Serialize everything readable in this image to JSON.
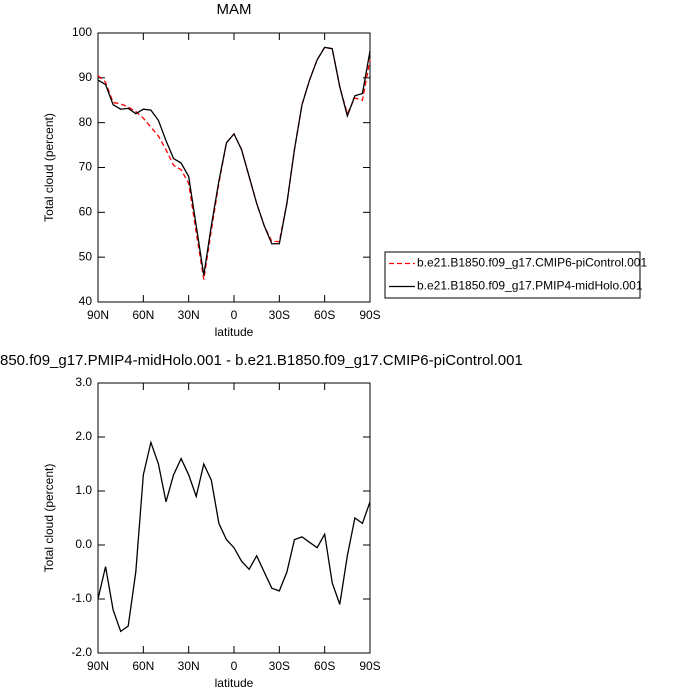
{
  "chart_data": [
    {
      "type": "line",
      "title": "MAM",
      "x_label": "latitude",
      "y_label": "Total cloud (percent)",
      "x": [
        90,
        85,
        80,
        75,
        70,
        65,
        60,
        55,
        50,
        45,
        40,
        35,
        30,
        25,
        20,
        15,
        10,
        5,
        0,
        -5,
        -10,
        -15,
        -20,
        -25,
        -30,
        -35,
        -40,
        -45,
        -50,
        -55,
        -60,
        -65,
        -70,
        -75,
        -80,
        -85,
        -90
      ],
      "series": [
        {
          "name": "b.e21.B1850.f09_g17.CMIP6-piControl.001",
          "color": "#ff0000",
          "dash": true,
          "values": [
            90.5,
            89,
            84.5,
            84.2,
            83.5,
            82.5,
            81,
            79,
            77,
            74,
            70.5,
            69.5,
            66.5,
            55.5,
            45,
            56,
            66.5,
            75.5,
            77.5,
            74,
            68,
            62,
            57,
            53.5,
            53.5,
            62,
            74,
            84,
            89.5,
            94,
            96.8,
            96.5,
            88,
            82,
            85.5,
            85,
            94
          ]
        },
        {
          "name": "b.e21.B1850.f09_g17.PMIP4-midHolo.001",
          "color": "#000000",
          "dash": false,
          "values": [
            89.5,
            88.5,
            84,
            83,
            83.2,
            82,
            83,
            82.8,
            80.5,
            76,
            72,
            71,
            68,
            57,
            46,
            57,
            67,
            75.5,
            77.5,
            74,
            68,
            62,
            57,
            53,
            53,
            62,
            74,
            84,
            89.5,
            94,
            96.8,
            96.5,
            88,
            81.5,
            86,
            86.5,
            96
          ]
        }
      ],
      "xlim": [
        90,
        -90
      ],
      "xticks": [
        {
          "value": 90,
          "label": "90N"
        },
        {
          "value": 60,
          "label": "60N"
        },
        {
          "value": 30,
          "label": "30N"
        },
        0,
        {
          "value": -30,
          "label": "30S"
        },
        {
          "value": -60,
          "label": "60S"
        },
        {
          "value": -90,
          "label": "90S"
        }
      ],
      "ylim": [
        40,
        100
      ],
      "yticks": [
        40,
        50,
        60,
        70,
        80,
        90,
        100
      ],
      "legend": "right"
    },
    {
      "type": "line",
      "title": "850.f09_g17.PMIP4-midHolo.001 - b.e21.B1850.f09_g17.CMIP6-piControl.001",
      "x_label": "latitude",
      "y_label": "Total cloud (percent)",
      "x": [
        90,
        85,
        80,
        75,
        70,
        65,
        60,
        55,
        50,
        45,
        40,
        35,
        30,
        25,
        20,
        15,
        10,
        5,
        0,
        -5,
        -10,
        -15,
        -20,
        -25,
        -30,
        -35,
        -40,
        -45,
        -50,
        -55,
        -60,
        -65,
        -70,
        -75,
        -80,
        -85,
        -90
      ],
      "series": [
        {
          "color": "#000000",
          "dash": false,
          "values": [
            -1.0,
            -0.4,
            -1.2,
            -1.6,
            -1.5,
            -0.5,
            1.3,
            1.9,
            1.5,
            0.8,
            1.3,
            1.6,
            1.3,
            0.9,
            1.5,
            1.2,
            0.4,
            0.1,
            -0.05,
            -0.3,
            -0.45,
            -0.2,
            -0.5,
            -0.8,
            -0.85,
            -0.5,
            0.1,
            0.15,
            0.05,
            -0.05,
            0.2,
            -0.7,
            -1.1,
            -0.2,
            0.5,
            0.4,
            0.8
          ]
        }
      ],
      "xlim": [
        90,
        -90
      ],
      "xticks": [
        {
          "value": 90,
          "label": "90N"
        },
        {
          "value": 60,
          "label": "60N"
        },
        {
          "value": 30,
          "label": "30N"
        },
        0,
        {
          "value": -30,
          "label": "30S"
        },
        {
          "value": -60,
          "label": "60S"
        },
        {
          "value": -90,
          "label": "90S"
        }
      ],
      "ylim": [
        -2,
        3
      ],
      "yticks": [
        {
          "value": -2,
          "label": "-2.0"
        },
        {
          "value": -1,
          "label": "-1.0"
        },
        {
          "value": 0,
          "label": "0.0"
        },
        {
          "value": 1,
          "label": "1.0"
        },
        {
          "value": 2,
          "label": "2.0"
        },
        {
          "value": 3,
          "label": "3.0"
        }
      ]
    }
  ]
}
